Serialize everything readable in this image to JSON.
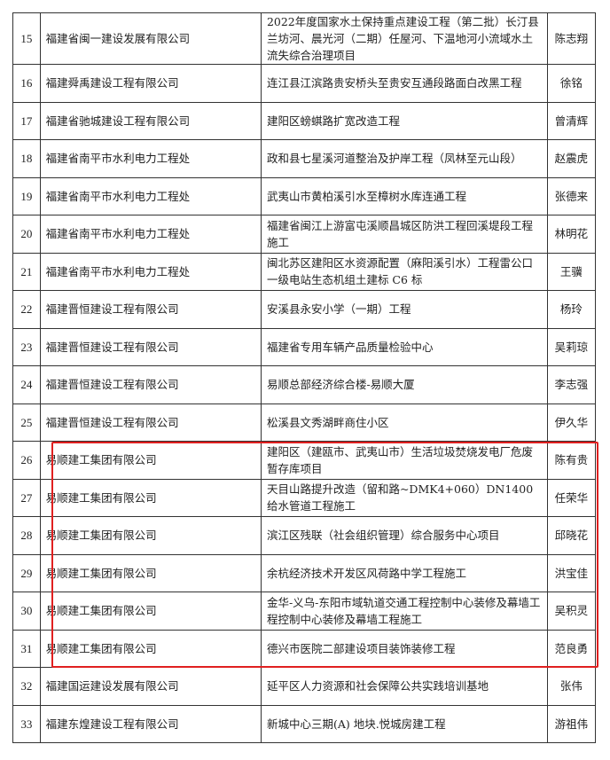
{
  "highlight_color": "#e02020",
  "rows": [
    {
      "no": "15",
      "company": "福建省闽一建设发展有限公司",
      "project": "2022年度国家水土保持重点建设工程（第二批）长汀县兰坊河、晨光河（二期）任屋河、下温地河小流域水土流失综合治理项目",
      "person": "陈志翔"
    },
    {
      "no": "16",
      "company": "福建舜禹建设工程有限公司",
      "project": "连江县江滨路贵安桥头至贵安互通段路面白改黑工程",
      "person": "徐铭"
    },
    {
      "no": "17",
      "company": "福建省驰城建设工程有限公司",
      "project": "建阳区螃蜞路扩宽改造工程",
      "person": "曾清辉"
    },
    {
      "no": "18",
      "company": "福建省南平市水利电力工程处",
      "project": "政和县七星溪河道整治及护岸工程（凤林至元山段）",
      "person": "赵震虎"
    },
    {
      "no": "19",
      "company": "福建省南平市水利电力工程处",
      "project": "武夷山市黄柏溪引水至樟树水库连通工程",
      "person": "张德来"
    },
    {
      "no": "20",
      "company": "福建省南平市水利电力工程处",
      "project": "福建省闽江上游富屯溪顺昌城区防洪工程回溪堤段工程施工",
      "person": "林明花"
    },
    {
      "no": "21",
      "company": "福建省南平市水利电力工程处",
      "project": "闽北苏区建阳区水资源配置（麻阳溪引水）工程雷公口一级电站生态机组土建标 C6 标",
      "person": "王骥"
    },
    {
      "no": "22",
      "company": "福建晋恒建设工程有限公司",
      "project": "安溪县永安小学（一期）工程",
      "person": "杨玲"
    },
    {
      "no": "23",
      "company": "福建晋恒建设工程有限公司",
      "project": "福建省专用车辆产品质量检验中心",
      "person": "吴莉琼"
    },
    {
      "no": "24",
      "company": "福建晋恒建设工程有限公司",
      "project": "易顺总部经济综合楼-易顺大厦",
      "person": "李志强"
    },
    {
      "no": "25",
      "company": "福建晋恒建设工程有限公司",
      "project": "松溪县文秀湖畔商住小区",
      "person": "伊久华"
    },
    {
      "no": "26",
      "company": "易顺建工集团有限公司",
      "project": "建阳区（建瓯市、武夷山市）生活垃圾焚烧发电厂危废暂存库项目",
      "person": "陈有贵"
    },
    {
      "no": "27",
      "company": "易顺建工集团有限公司",
      "project": "天目山路提升改造（留和路~DMK4+060）DN1400 给水管道工程施工",
      "person": "任荣华"
    },
    {
      "no": "28",
      "company": "易顺建工集团有限公司",
      "project": "滨江区残联（社会组织管理）综合服务中心项目",
      "person": "邱晓花"
    },
    {
      "no": "29",
      "company": "易顺建工集团有限公司",
      "project": "余杭经济技术开发区风荷路中学工程施工",
      "person": "洪宝佳"
    },
    {
      "no": "30",
      "company": "易顺建工集团有限公司",
      "project": "金华-义乌-东阳市域轨道交通工程控制中心装修及幕墙工程控制中心装修及幕墙工程施工",
      "person": "吴积灵"
    },
    {
      "no": "31",
      "company": "易顺建工集团有限公司",
      "project": "德兴市医院二部建设项目装饰装修工程",
      "person": "范良勇"
    },
    {
      "no": "32",
      "company": "福建国运建设发展有限公司",
      "project": "延平区人力资源和社会保障公共实践培训基地",
      "person": "张伟"
    },
    {
      "no": "33",
      "company": "福建东煌建设工程有限公司",
      "project": "新城中心三期(A) 地块.悦城房建工程",
      "person": "游祖伟"
    }
  ]
}
